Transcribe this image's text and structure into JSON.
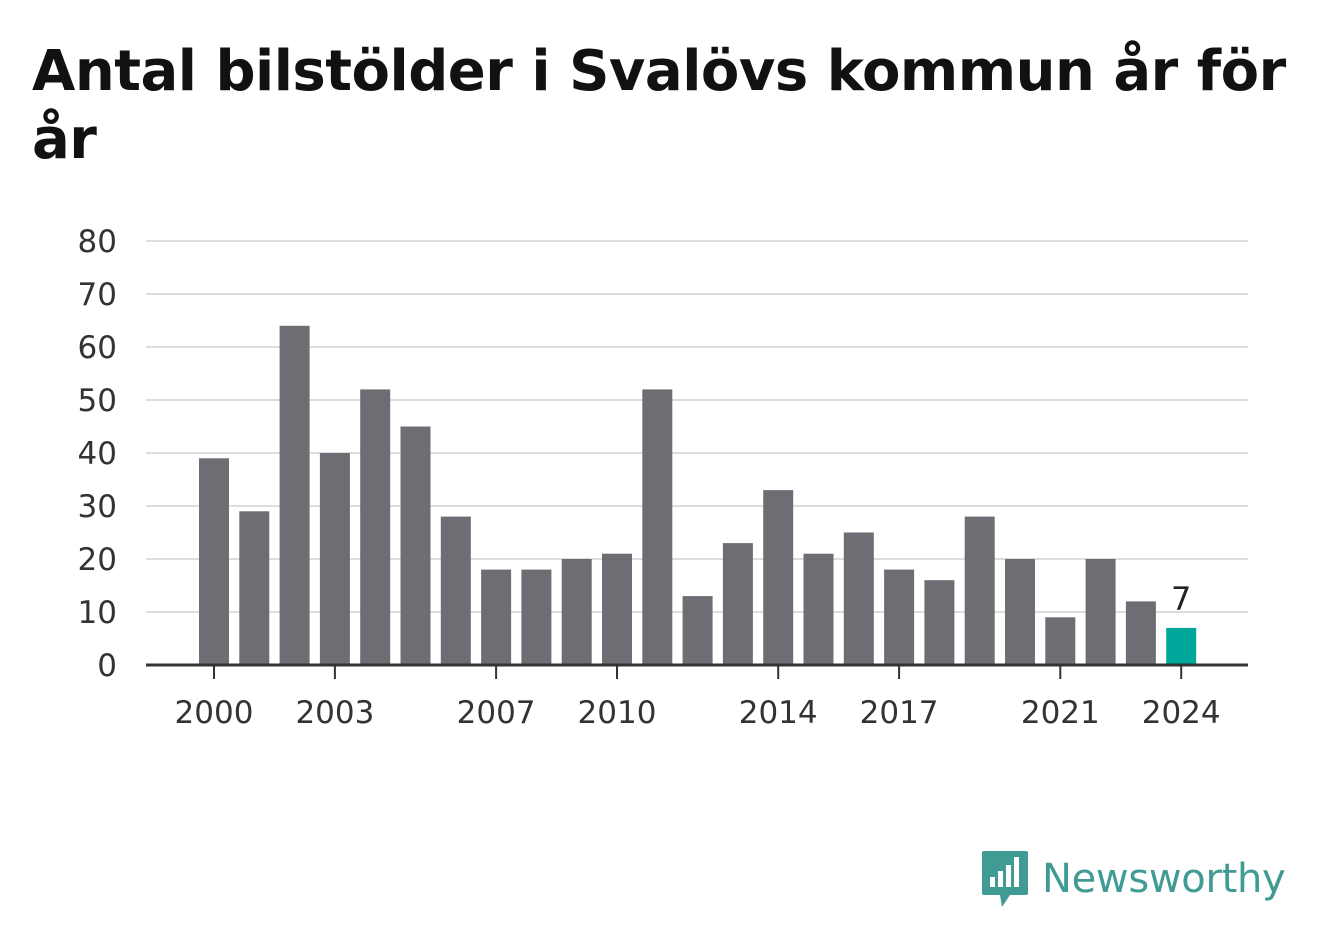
{
  "chart_data": {
    "type": "bar",
    "title": "Antal bilstölder i Svalövs kommun år för år",
    "x": [
      2000,
      2001,
      2002,
      2003,
      2004,
      2005,
      2006,
      2007,
      2008,
      2009,
      2010,
      2011,
      2012,
      2013,
      2014,
      2015,
      2016,
      2017,
      2018,
      2019,
      2020,
      2021,
      2022,
      2023,
      2024
    ],
    "values": [
      39,
      29,
      64,
      40,
      52,
      45,
      28,
      18,
      18,
      20,
      21,
      52,
      13,
      23,
      33,
      21,
      25,
      18,
      16,
      28,
      20,
      9,
      20,
      12,
      7
    ],
    "x_tick_labels": [
      "2000",
      "2003",
      "2007",
      "2010",
      "2014",
      "2017",
      "2021",
      "2024"
    ],
    "y_ticks": [
      "0",
      "10",
      "20",
      "30",
      "40",
      "50",
      "60",
      "70",
      "80"
    ],
    "ylim": [
      0,
      80
    ],
    "grid": true,
    "highlight": {
      "x": 2024,
      "label": "7"
    },
    "colors": {
      "bar": "#6e6d73",
      "highlight": "#00a89c",
      "grid": "#dddddd",
      "axis": "#333333"
    }
  },
  "brand": {
    "name": "Newsworthy",
    "icon": "newsworthy-logo-icon",
    "color": "#3f9b93"
  }
}
